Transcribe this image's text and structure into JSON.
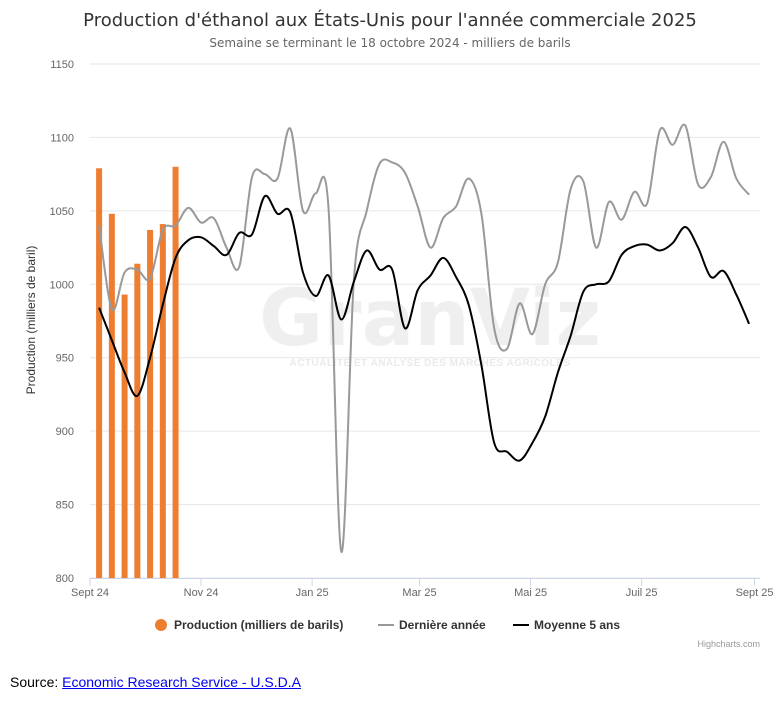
{
  "source": {
    "label": "Source: ",
    "link_text": "Economic Research Service - U.S.D.A"
  },
  "credits": "Highcharts.com",
  "watermark": {
    "text": "GranViz",
    "tagline": "ACTUALITÉ ET ANALYSE DES MARCHÉS AGRICOLES"
  },
  "colors": {
    "production": "#ed7d31",
    "last_year": "#999999",
    "avg5": "#000000",
    "grid": "#e6e6e6"
  },
  "chart_data": {
    "type": "bar",
    "title": "Production d'éthanol aux États-Unis pour l'année commerciale 2025",
    "subtitle": "Semaine se terminant le 18 octobre 2024 - milliers de barils",
    "ylabel": "Production (milliers de baril)",
    "ylim": [
      800,
      1150
    ],
    "yticks": [
      800,
      850,
      900,
      950,
      1000,
      1050,
      1100,
      1150
    ],
    "xlim": [
      "2024-09-01",
      "2025-09-04"
    ],
    "xticks": [
      {
        "date": "2024-09-01",
        "label": "Sept 24"
      },
      {
        "date": "2024-11-01",
        "label": "Nov 24"
      },
      {
        "date": "2025-01-01",
        "label": "Jan 25"
      },
      {
        "date": "2025-03-01",
        "label": "Mar 25"
      },
      {
        "date": "2025-05-01",
        "label": "Mai 25"
      },
      {
        "date": "2025-07-01",
        "label": "Juil 25"
      },
      {
        "date": "2025-09-01",
        "label": "Sept 25"
      }
    ],
    "grid": true,
    "legend_position": "bottom-center",
    "series": [
      {
        "name": "Production (milliers de barils)",
        "type": "column",
        "points": [
          {
            "x": "2024-09-06",
            "y": 1079
          },
          {
            "x": "2024-09-13",
            "y": 1048
          },
          {
            "x": "2024-09-20",
            "y": 993
          },
          {
            "x": "2024-09-27",
            "y": 1014
          },
          {
            "x": "2024-10-04",
            "y": 1037
          },
          {
            "x": "2024-10-11",
            "y": 1041
          },
          {
            "x": "2024-10-18",
            "y": 1080
          }
        ]
      },
      {
        "name": "Dernière année",
        "type": "spline",
        "points": [
          {
            "x": "2024-09-06",
            "y": 1040
          },
          {
            "x": "2024-09-13",
            "y": 983
          },
          {
            "x": "2024-09-20",
            "y": 1008
          },
          {
            "x": "2024-09-27",
            "y": 1010
          },
          {
            "x": "2024-10-04",
            "y": 1004
          },
          {
            "x": "2024-10-11",
            "y": 1037
          },
          {
            "x": "2024-10-18",
            "y": 1040
          },
          {
            "x": "2024-10-25",
            "y": 1052
          },
          {
            "x": "2024-11-01",
            "y": 1042
          },
          {
            "x": "2024-11-08",
            "y": 1045
          },
          {
            "x": "2024-11-15",
            "y": 1025
          },
          {
            "x": "2024-11-22",
            "y": 1012
          },
          {
            "x": "2024-11-29",
            "y": 1073
          },
          {
            "x": "2024-12-06",
            "y": 1075
          },
          {
            "x": "2024-12-13",
            "y": 1072
          },
          {
            "x": "2024-12-20",
            "y": 1106
          },
          {
            "x": "2024-12-27",
            "y": 1050
          },
          {
            "x": "2025-01-03",
            "y": 1062
          },
          {
            "x": "2025-01-10",
            "y": 1052
          },
          {
            "x": "2025-01-17",
            "y": 818
          },
          {
            "x": "2025-01-24",
            "y": 1004
          },
          {
            "x": "2025-01-31",
            "y": 1050
          },
          {
            "x": "2025-02-07",
            "y": 1082
          },
          {
            "x": "2025-02-14",
            "y": 1083
          },
          {
            "x": "2025-02-21",
            "y": 1076
          },
          {
            "x": "2025-02-28",
            "y": 1053
          },
          {
            "x": "2025-03-07",
            "y": 1025
          },
          {
            "x": "2025-03-14",
            "y": 1045
          },
          {
            "x": "2025-03-21",
            "y": 1053
          },
          {
            "x": "2025-03-28",
            "y": 1072
          },
          {
            "x": "2025-04-04",
            "y": 1048
          },
          {
            "x": "2025-04-11",
            "y": 970
          },
          {
            "x": "2025-04-18",
            "y": 956
          },
          {
            "x": "2025-04-25",
            "y": 987
          },
          {
            "x": "2025-05-02",
            "y": 966
          },
          {
            "x": "2025-05-09",
            "y": 1000
          },
          {
            "x": "2025-05-16",
            "y": 1015
          },
          {
            "x": "2025-05-23",
            "y": 1065
          },
          {
            "x": "2025-05-30",
            "y": 1070
          },
          {
            "x": "2025-06-06",
            "y": 1025
          },
          {
            "x": "2025-06-13",
            "y": 1056
          },
          {
            "x": "2025-06-20",
            "y": 1044
          },
          {
            "x": "2025-06-27",
            "y": 1063
          },
          {
            "x": "2025-07-04",
            "y": 1055
          },
          {
            "x": "2025-07-11",
            "y": 1105
          },
          {
            "x": "2025-07-18",
            "y": 1095
          },
          {
            "x": "2025-07-25",
            "y": 1108
          },
          {
            "x": "2025-08-01",
            "y": 1068
          },
          {
            "x": "2025-08-08",
            "y": 1073
          },
          {
            "x": "2025-08-15",
            "y": 1097
          },
          {
            "x": "2025-08-22",
            "y": 1072
          },
          {
            "x": "2025-08-29",
            "y": 1061
          }
        ]
      },
      {
        "name": "Moyenne 5 ans",
        "type": "spline",
        "points": [
          {
            "x": "2024-09-06",
            "y": 984
          },
          {
            "x": "2024-09-13",
            "y": 962
          },
          {
            "x": "2024-09-20",
            "y": 940
          },
          {
            "x": "2024-09-27",
            "y": 924
          },
          {
            "x": "2024-10-04",
            "y": 950
          },
          {
            "x": "2024-10-11",
            "y": 986
          },
          {
            "x": "2024-10-18",
            "y": 1018
          },
          {
            "x": "2024-10-25",
            "y": 1030
          },
          {
            "x": "2024-11-01",
            "y": 1032
          },
          {
            "x": "2024-11-08",
            "y": 1026
          },
          {
            "x": "2024-11-15",
            "y": 1020
          },
          {
            "x": "2024-11-22",
            "y": 1035
          },
          {
            "x": "2024-11-29",
            "y": 1034
          },
          {
            "x": "2024-12-06",
            "y": 1060
          },
          {
            "x": "2024-12-13",
            "y": 1048
          },
          {
            "x": "2024-12-20",
            "y": 1049
          },
          {
            "x": "2024-12-27",
            "y": 1008
          },
          {
            "x": "2025-01-03",
            "y": 992
          },
          {
            "x": "2025-01-10",
            "y": 1006
          },
          {
            "x": "2025-01-17",
            "y": 976
          },
          {
            "x": "2025-01-24",
            "y": 1002
          },
          {
            "x": "2025-01-31",
            "y": 1023
          },
          {
            "x": "2025-02-07",
            "y": 1010
          },
          {
            "x": "2025-02-14",
            "y": 1010
          },
          {
            "x": "2025-02-21",
            "y": 970
          },
          {
            "x": "2025-02-28",
            "y": 996
          },
          {
            "x": "2025-03-07",
            "y": 1006
          },
          {
            "x": "2025-03-14",
            "y": 1018
          },
          {
            "x": "2025-03-21",
            "y": 1005
          },
          {
            "x": "2025-03-28",
            "y": 986
          },
          {
            "x": "2025-04-04",
            "y": 945
          },
          {
            "x": "2025-04-11",
            "y": 892
          },
          {
            "x": "2025-04-18",
            "y": 886
          },
          {
            "x": "2025-04-25",
            "y": 880
          },
          {
            "x": "2025-05-02",
            "y": 892
          },
          {
            "x": "2025-05-09",
            "y": 910
          },
          {
            "x": "2025-05-16",
            "y": 940
          },
          {
            "x": "2025-05-23",
            "y": 965
          },
          {
            "x": "2025-05-30",
            "y": 995
          },
          {
            "x": "2025-06-06",
            "y": 1000
          },
          {
            "x": "2025-06-13",
            "y": 1002
          },
          {
            "x": "2025-06-20",
            "y": 1020
          },
          {
            "x": "2025-06-27",
            "y": 1026
          },
          {
            "x": "2025-07-04",
            "y": 1027
          },
          {
            "x": "2025-07-11",
            "y": 1023
          },
          {
            "x": "2025-07-18",
            "y": 1028
          },
          {
            "x": "2025-07-25",
            "y": 1039
          },
          {
            "x": "2025-08-01",
            "y": 1025
          },
          {
            "x": "2025-08-08",
            "y": 1005
          },
          {
            "x": "2025-08-15",
            "y": 1009
          },
          {
            "x": "2025-08-22",
            "y": 993
          },
          {
            "x": "2025-08-29",
            "y": 973
          }
        ]
      }
    ]
  }
}
